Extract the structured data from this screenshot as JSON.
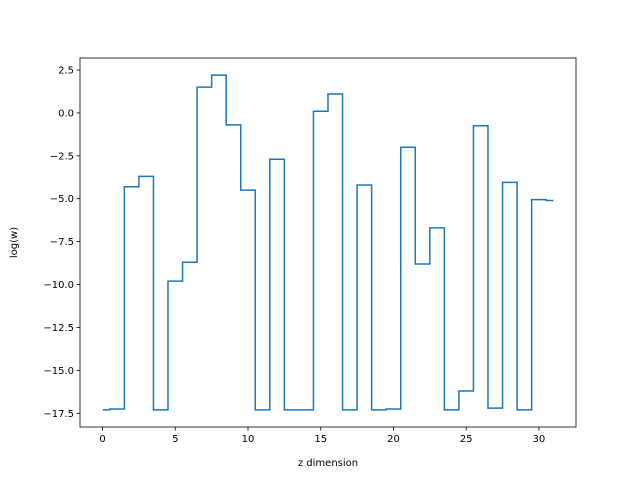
{
  "chart_data": {
    "type": "line",
    "drawstyle": "steps-mid",
    "title": "",
    "xlabel": "z dimension",
    "ylabel": "log(w)",
    "xlim": [
      -1.55,
      32.55
    ],
    "ylim": [
      -18.3,
      3.2
    ],
    "grid": false,
    "x_ticks": [
      0,
      5,
      10,
      15,
      20,
      25,
      30
    ],
    "x_tick_labels": [
      "0",
      "5",
      "10",
      "15",
      "20",
      "25",
      "30"
    ],
    "y_ticks": [
      2.5,
      0,
      -2.5,
      -5,
      -7.5,
      -10,
      -12.5,
      -15,
      -17.5
    ],
    "y_tick_labels": [
      "2.5",
      "0.0",
      "−2.5",
      "−5.0",
      "−7.5",
      "−10.0",
      "−12.5",
      "−15.0",
      "−17.5"
    ],
    "colors": {
      "line": "#1f77b4"
    },
    "series": [
      {
        "x": [
          0,
          1,
          2,
          3,
          4,
          5,
          6,
          7,
          8,
          9,
          10,
          11,
          12,
          13,
          14,
          15,
          16,
          17,
          18,
          19,
          20,
          21,
          22,
          23,
          24,
          25,
          26,
          27,
          28,
          29,
          30,
          31
        ],
        "values": [
          -17.3,
          -17.25,
          -4.3,
          -3.7,
          -17.3,
          -9.8,
          -8.7,
          1.5,
          2.2,
          -0.7,
          -4.5,
          -17.3,
          -2.7,
          -17.3,
          -17.3,
          0.1,
          1.1,
          -17.3,
          -4.2,
          -17.3,
          -17.25,
          -2.0,
          -8.8,
          -6.7,
          -17.3,
          -16.2,
          -0.75,
          -17.2,
          -4.05,
          -17.3,
          -5.05,
          -5.1
        ]
      }
    ]
  }
}
